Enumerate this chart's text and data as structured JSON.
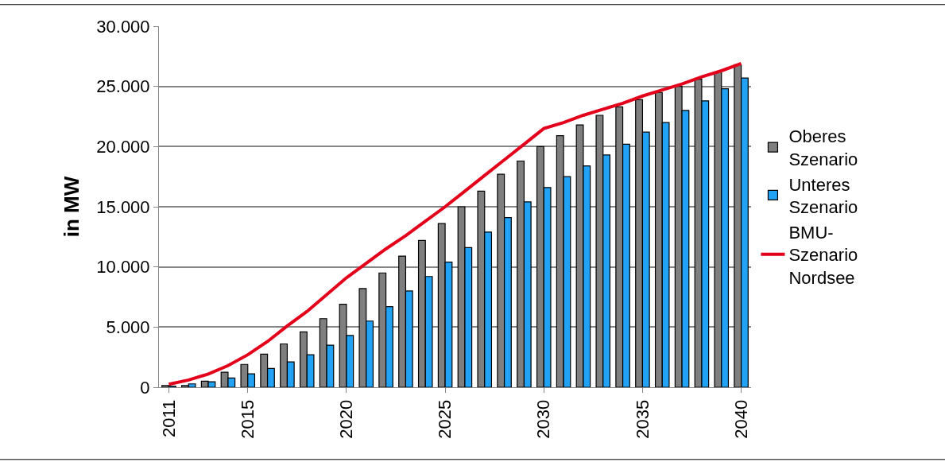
{
  "chart_data": {
    "type": "bar",
    "ylabel": "in MW",
    "categories": [
      "2011",
      null,
      null,
      null,
      "2015",
      null,
      null,
      null,
      null,
      "2020",
      null,
      null,
      null,
      null,
      "2025",
      null,
      null,
      null,
      null,
      "2030",
      null,
      null,
      null,
      null,
      "2035",
      null,
      null,
      null,
      null,
      "2040"
    ],
    "series": [
      {
        "name": "Oberes Szenario",
        "color": "#7f7f7f",
        "values": [
          150,
          150,
          500,
          1250,
          1900,
          2750,
          3600,
          4600,
          5700,
          6900,
          8200,
          9500,
          10900,
          12200,
          13600,
          15000,
          16300,
          17700,
          18800,
          20000,
          20900,
          21800,
          22600,
          23300,
          23900,
          24500,
          25000,
          25600,
          26200,
          26800
        ]
      },
      {
        "name": "Unteres Szenario",
        "color": "#22a2f5",
        "values": [
          100,
          280,
          460,
          770,
          1120,
          1560,
          2100,
          2700,
          3500,
          4300,
          5500,
          6700,
          8000,
          9200,
          10400,
          11600,
          12900,
          14100,
          15400,
          16600,
          17500,
          18400,
          19300,
          20200,
          21200,
          22000,
          23000,
          23800,
          24800,
          25700
        ]
      },
      {
        "name": "BMU-Szenario Nordsee",
        "type": "line",
        "color": "#e3001b",
        "values": [
          250,
          600,
          1100,
          1800,
          2700,
          3800,
          5100,
          6300,
          7700,
          9100,
          10300,
          11500,
          12600,
          13800,
          15000,
          16300,
          17600,
          18900,
          20200,
          21500,
          22000,
          22600,
          23100,
          23600,
          24200,
          24700,
          25200,
          25800,
          26300,
          26900
        ]
      }
    ],
    "ylim": [
      0,
      30000
    ],
    "yticks": [
      {
        "value": 0,
        "label": "0"
      },
      {
        "value": 5000,
        "label": "5.000"
      },
      {
        "value": 10000,
        "label": "10.000"
      },
      {
        "value": 15000,
        "label": "15.000"
      },
      {
        "value": 20000,
        "label": "20.000"
      },
      {
        "value": 25000,
        "label": "25.000"
      },
      {
        "value": 30000,
        "label": "30.000"
      }
    ],
    "grid": "y",
    "legend": "right",
    "marker": "none",
    "line_style": "solid"
  }
}
